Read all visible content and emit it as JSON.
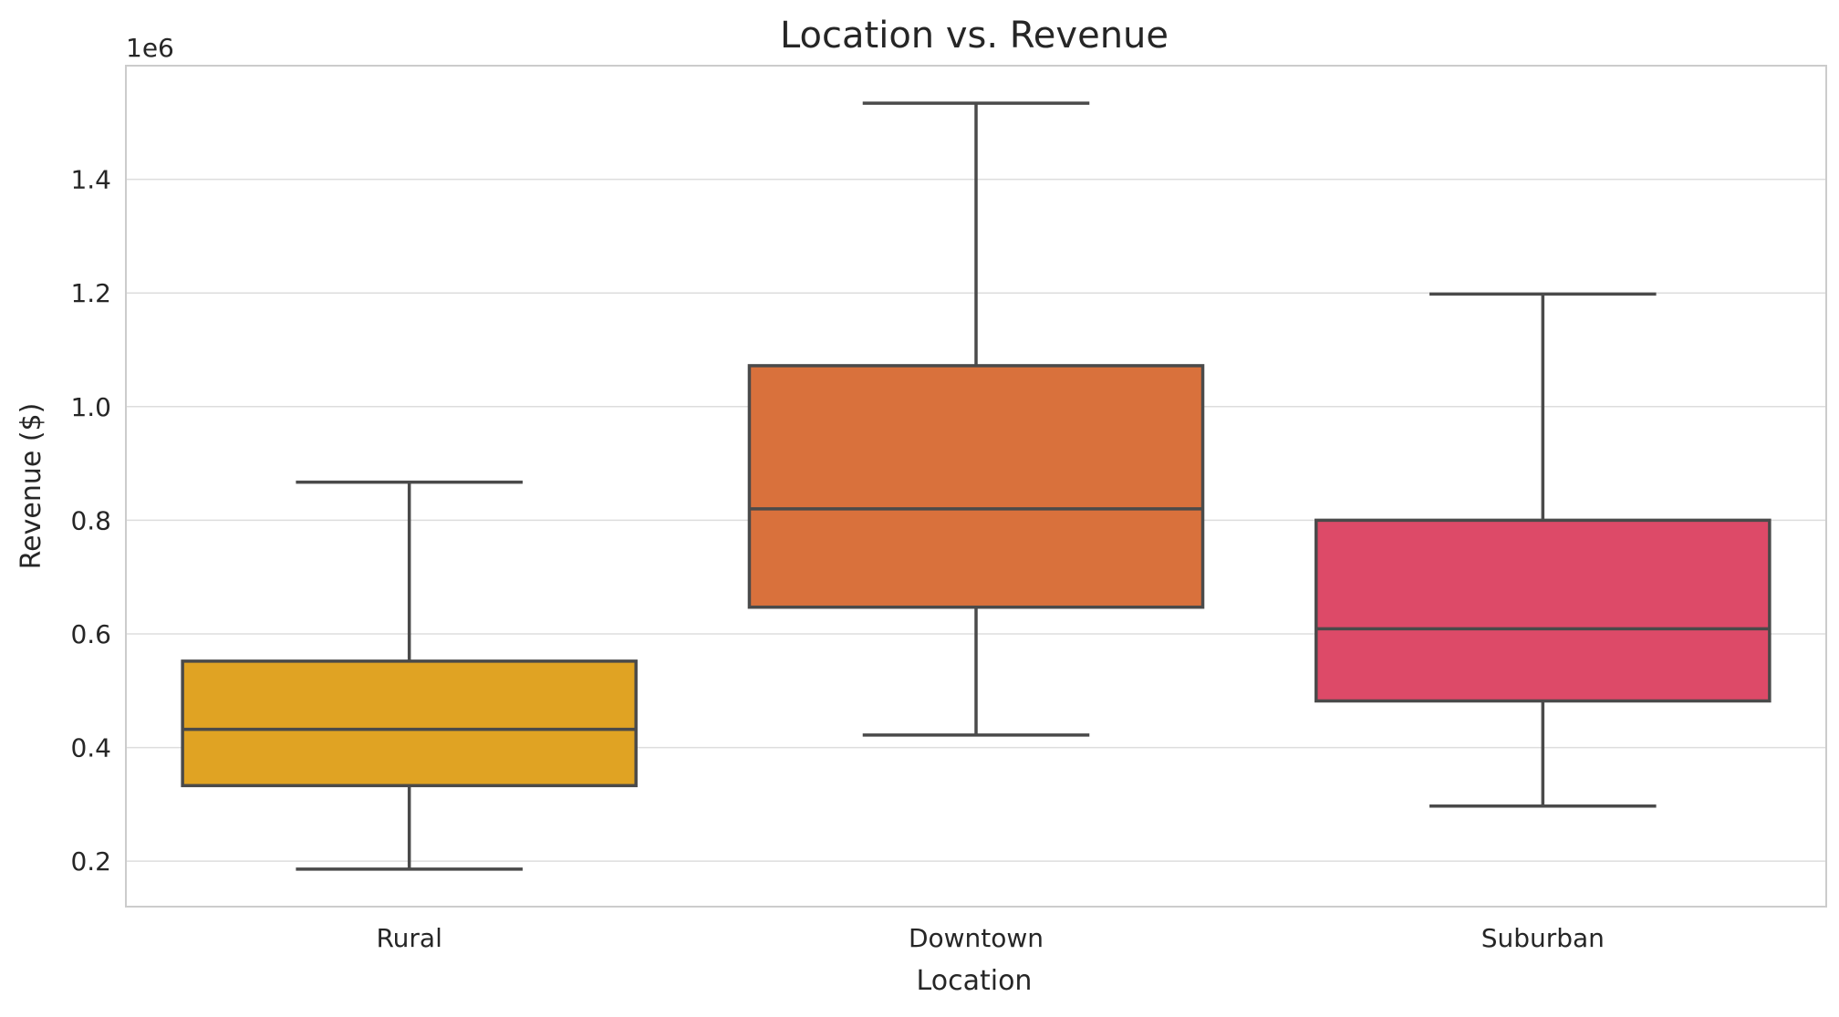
{
  "chart_data": {
    "type": "box",
    "title": "Location vs. Revenue",
    "xlabel": "Location",
    "ylabel": "Revenue ($)",
    "y_offset_label": "1e6",
    "ylim": [
      0.12,
      1.6
    ],
    "y_ticks": [
      0.2,
      0.4,
      0.6,
      0.8,
      1.0,
      1.2,
      1.4
    ],
    "y_tick_labels": [
      "0.2",
      "0.4",
      "0.6",
      "0.8",
      "1.0",
      "1.2",
      "1.4"
    ],
    "grid": true,
    "categories": [
      "Rural",
      "Downtown",
      "Suburban"
    ],
    "boxes": [
      {
        "category": "Rural",
        "whisker_low": 0.186,
        "q1": 0.333,
        "median": 0.432,
        "q3": 0.552,
        "whisker_high": 0.867,
        "color": "#E0A323"
      },
      {
        "category": "Downtown",
        "whisker_low": 0.422,
        "q1": 0.647,
        "median": 0.82,
        "q3": 1.072,
        "whisker_high": 1.534,
        "color": "#D9713C"
      },
      {
        "category": "Suburban",
        "whisker_low": 0.297,
        "q1": 0.482,
        "median": 0.609,
        "q3": 0.8,
        "whisker_high": 1.198,
        "color": "#DD4A68"
      }
    ],
    "line_color": "#4a4a4a",
    "grid_color": "#dddddd",
    "spine_color": "#cccccc"
  }
}
